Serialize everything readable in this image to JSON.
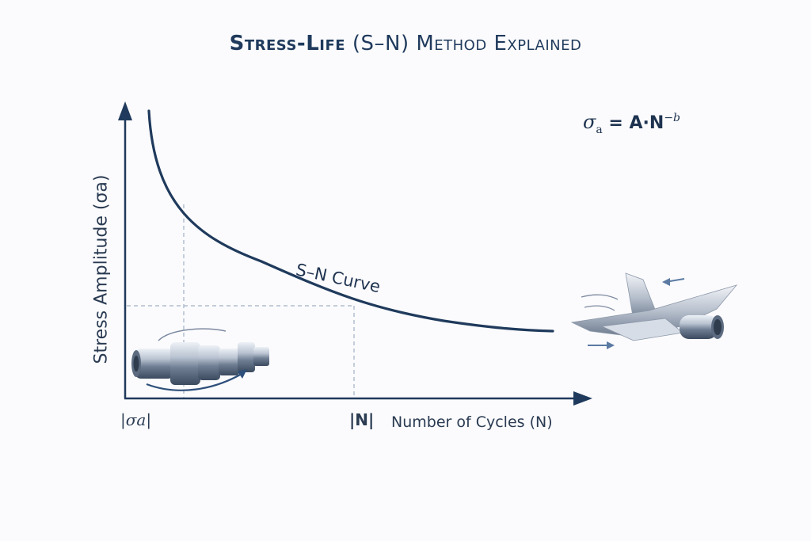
{
  "title": {
    "bold_part": "Stress-Life",
    "rest": " (S–N) Method Explained"
  },
  "formula": {
    "sigma": "σ",
    "sub": "a",
    "equals_rhs": " = A·N",
    "exponent": "−b"
  },
  "axes": {
    "ylabel": "Stress Amplitude (σa)",
    "xlabel": "Number of Cycles (N)",
    "x_tick_sigma": "|σa|",
    "x_tick_n": "|N|"
  },
  "curve_label": "S–N Curve",
  "colors": {
    "axis": "#1f3a5c",
    "curve": "#1f3a5c",
    "guide": "#9fb0c6"
  },
  "icons": [
    "shaft-component-icon",
    "aircraft-wing-icon"
  ]
}
